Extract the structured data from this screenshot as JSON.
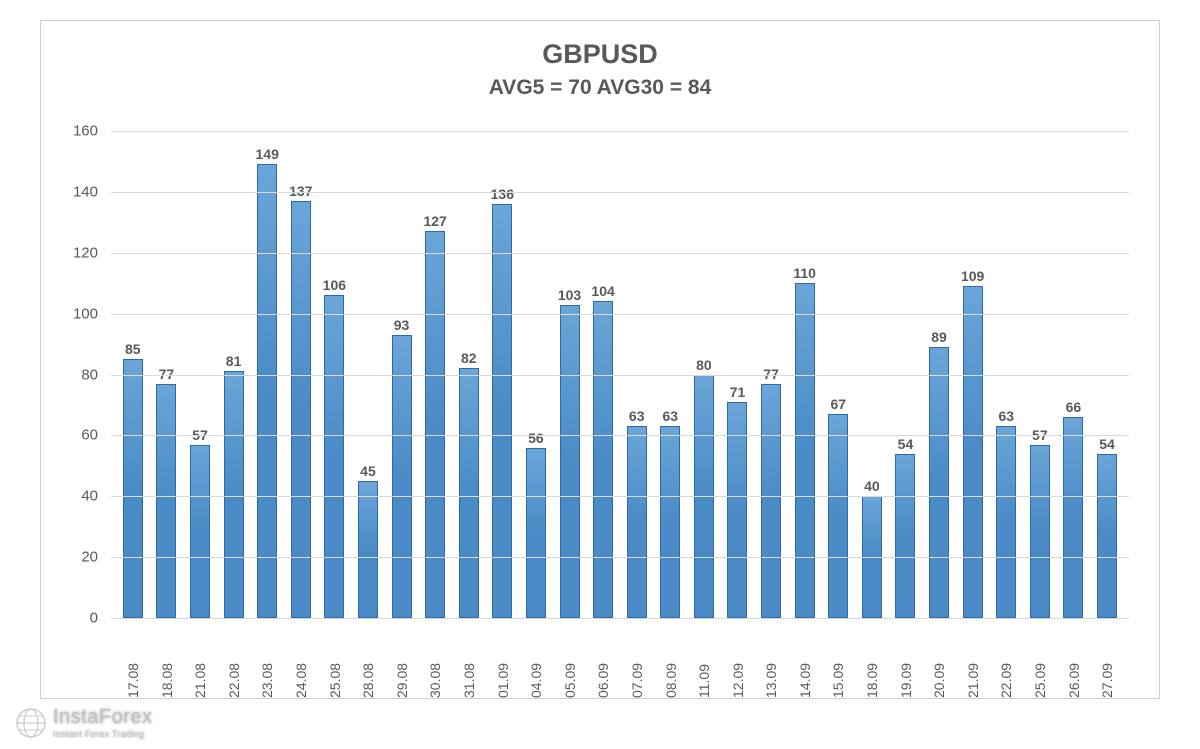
{
  "chart": {
    "type": "bar",
    "title": "GBPUSD",
    "title_fontsize": 27,
    "subtitle": "AVG5 = 70 AVG30 = 84",
    "subtitle_fontsize": 21,
    "title_color": "#595959",
    "background_color": "#ffffff",
    "border_color": "#d0d0d0",
    "grid_color": "#d9d9d9",
    "bar_fill_color": "#5b9bd5",
    "bar_border_color": "#2e6aa5",
    "label_color": "#595959",
    "value_label_fontsize": 14,
    "axis_label_fontsize": 15,
    "ylim": [
      0,
      160
    ],
    "ytick_step": 20,
    "yticks": [
      0,
      20,
      40,
      60,
      80,
      100,
      120,
      140,
      160
    ],
    "categories": [
      "17.08",
      "18.08",
      "21.08",
      "22.08",
      "23.08",
      "24.08",
      "25.08",
      "28.08",
      "29.08",
      "30.08",
      "31.08",
      "01.09",
      "04.09",
      "05.09",
      "06.09",
      "07.09",
      "08.09",
      "11.09",
      "12.09",
      "13.09",
      "14.09",
      "15.09",
      "18.09",
      "19.09",
      "20.09",
      "21.09",
      "22.09",
      "25.09",
      "26.09",
      "27.09"
    ],
    "values": [
      85,
      77,
      57,
      81,
      149,
      137,
      106,
      45,
      93,
      127,
      82,
      136,
      56,
      103,
      104,
      63,
      63,
      80,
      71,
      77,
      110,
      67,
      40,
      54,
      89,
      109,
      63,
      57,
      66,
      54
    ],
    "bar_width": 0.62
  },
  "watermark": {
    "brand": "InstaForex",
    "tagline": "Instant Forex Trading",
    "icon_color": "#ffffff"
  }
}
